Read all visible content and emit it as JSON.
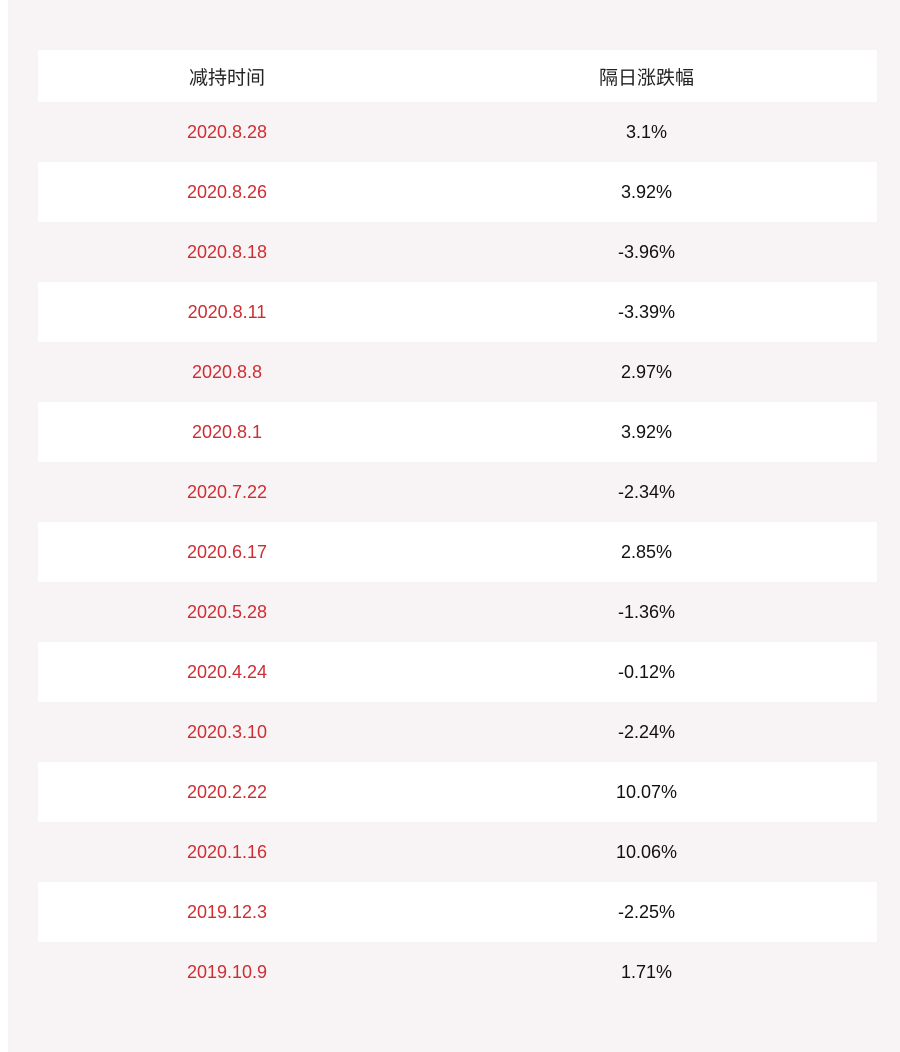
{
  "table": {
    "headers": {
      "date": "减持时间",
      "change": "隔日涨跌幅"
    },
    "rows": [
      {
        "date": "2020.8.28",
        "change": "3.1%"
      },
      {
        "date": "2020.8.26",
        "change": "3.92%"
      },
      {
        "date": "2020.8.18",
        "change": "-3.96%"
      },
      {
        "date": "2020.8.11",
        "change": "-3.39%"
      },
      {
        "date": "2020.8.8",
        "change": "2.97%"
      },
      {
        "date": "2020.8.1",
        "change": "3.92%"
      },
      {
        "date": "2020.7.22",
        "change": "-2.34%"
      },
      {
        "date": "2020.6.17",
        "change": "2.85%"
      },
      {
        "date": "2020.5.28",
        "change": "-1.36%"
      },
      {
        "date": "2020.4.24",
        "change": "-0.12%"
      },
      {
        "date": "2020.3.10",
        "change": "-2.24%"
      },
      {
        "date": "2020.2.22",
        "change": "10.07%"
      },
      {
        "date": "2020.1.16",
        "change": "10.06%"
      },
      {
        "date": "2019.12.3",
        "change": "-2.25%"
      },
      {
        "date": "2019.10.9",
        "change": "1.71%"
      }
    ]
  },
  "colors": {
    "panel_background": "#f8f4f5",
    "alt_row_background": "#ffffff",
    "date_text": "#cc2e33",
    "value_text": "#111111"
  }
}
